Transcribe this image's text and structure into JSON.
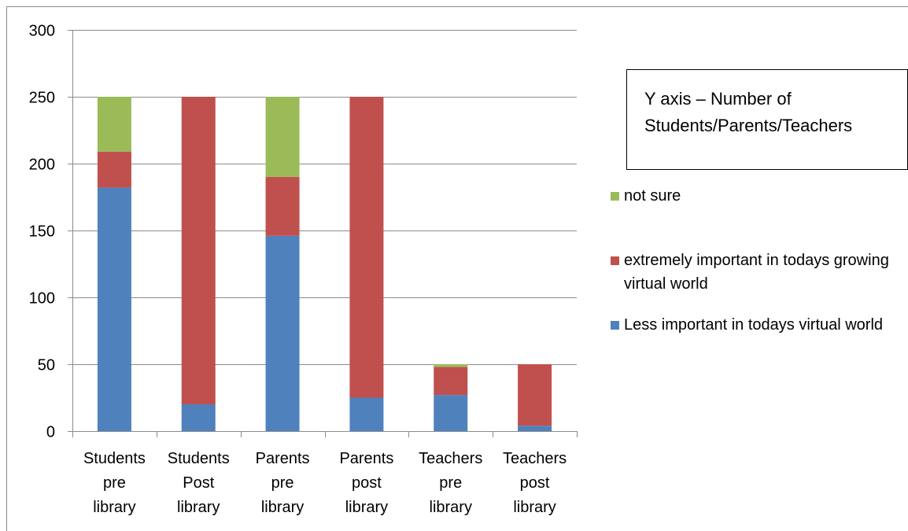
{
  "note_text": "Y axis – Number of Students/Parents/Teachers",
  "chart_data": {
    "type": "bar",
    "stacked": true,
    "categories": [
      [
        "Students",
        "pre",
        "library"
      ],
      [
        "Students",
        "Post",
        "library"
      ],
      [
        "Parents",
        "pre",
        "library"
      ],
      [
        "Parents",
        "post",
        "library"
      ],
      [
        "Teachers",
        "pre",
        "library"
      ],
      [
        "Teachers",
        "post",
        "library"
      ]
    ],
    "series": [
      {
        "name": "Less important in todays virtual world",
        "color": "#4f81bd",
        "values": [
          182,
          20,
          146,
          25,
          27,
          4
        ]
      },
      {
        "name": "extremely important in todays growing virtual world",
        "color": "#c0504d",
        "values": [
          27,
          230,
          44,
          225,
          21,
          46
        ]
      },
      {
        "name": "not sure",
        "color": "#9bbb59",
        "values": [
          41,
          0,
          60,
          0,
          2,
          0
        ]
      }
    ],
    "legend_order": [
      2,
      1,
      0
    ],
    "legend_position": "right",
    "ylim": [
      0,
      300
    ],
    "yticks": [
      0,
      50,
      100,
      150,
      200,
      250,
      300
    ],
    "grid": true
  }
}
